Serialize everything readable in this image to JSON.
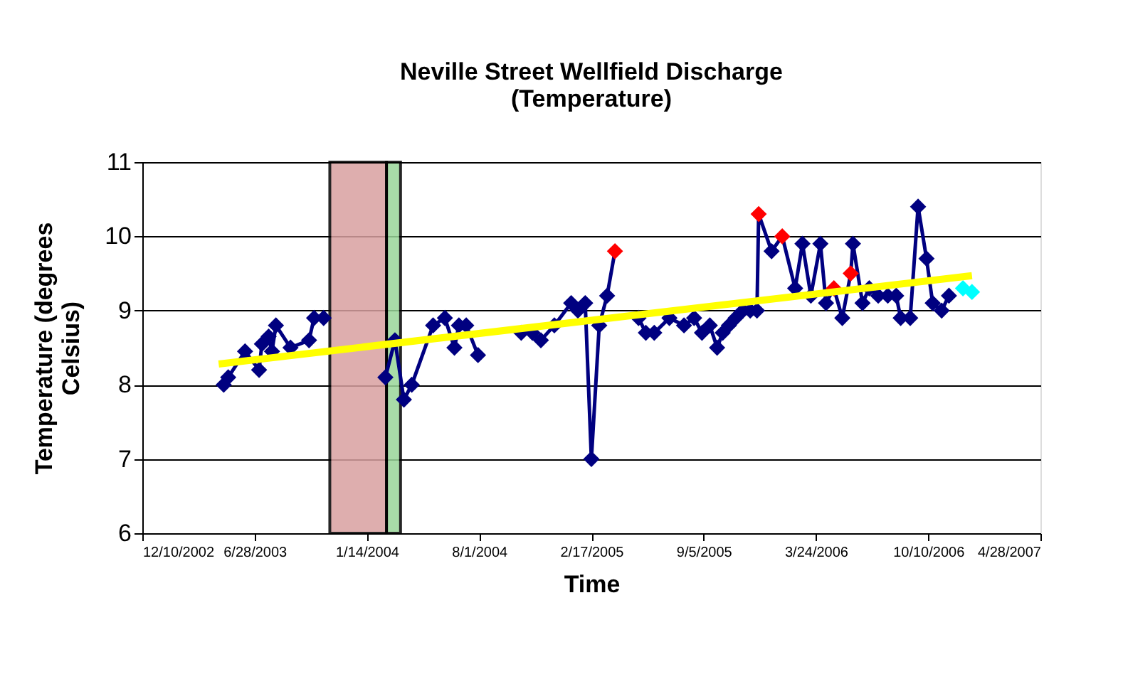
{
  "chart_data": {
    "type": "line",
    "title": "Neville Street Wellfield Discharge (Temperature)",
    "xlabel": "Time",
    "ylabel": "Temperature (degrees Celsius)",
    "xlim": [
      "2002-12-10",
      "2007-04-28"
    ],
    "xticks": [
      {
        "value": "2002-12-10",
        "label": "12/10/2002"
      },
      {
        "value": "2003-06-28",
        "label": "6/28/2003"
      },
      {
        "value": "2004-01-14",
        "label": "1/14/2004"
      },
      {
        "value": "2004-08-01",
        "label": "8/1/2004"
      },
      {
        "value": "2005-02-17",
        "label": "2/17/2005"
      },
      {
        "value": "2005-09-05",
        "label": "9/5/2005"
      },
      {
        "value": "2006-03-24",
        "label": "3/24/2006"
      },
      {
        "value": "2006-10-10",
        "label": "10/10/2006"
      },
      {
        "value": "2007-04-28",
        "label": "4/28/2007"
      }
    ],
    "ylim": [
      6,
      11
    ],
    "yticks": [
      6,
      7,
      8,
      9,
      10,
      11
    ],
    "grid": "y",
    "marker": "diamond",
    "line_style": "solid",
    "bands": [
      {
        "axis": "x",
        "from": "2003-11-09",
        "to": "2004-02-18",
        "color": "#d9a0a0"
      },
      {
        "axis": "x",
        "from": "2004-02-18",
        "to": "2004-03-14",
        "color": "#99d699"
      }
    ],
    "series": [
      {
        "color": "#000080",
        "x": [
          "2003-05-04",
          "2003-05-12",
          "2003-06-11",
          "2003-07-06",
          "2003-07-11",
          "2003-07-23",
          "2003-07-29",
          "2003-08-05",
          "2003-08-31",
          "2003-10-03",
          "2003-10-12",
          "2003-10-29",
          "2003-12-20",
          "2004-02-16",
          "2004-03-04",
          "2004-03-20",
          "2004-04-03",
          "2004-05-11",
          "2004-06-01",
          "2004-06-18",
          "2004-06-26",
          "2004-07-09",
          "2004-07-30",
          "2004-09-15",
          "2004-10-15",
          "2004-11-04",
          "2004-11-19",
          "2004-12-13",
          "2005-01-12",
          "2005-01-24",
          "2005-02-06",
          "2005-02-17",
          "2005-03-03",
          "2005-03-17",
          "2005-03-31",
          "2005-04-20",
          "2005-05-12",
          "2005-05-25",
          "2005-06-09",
          "2005-07-06",
          "2005-08-01",
          "2005-08-19",
          "2005-09-02",
          "2005-09-16",
          "2005-09-29",
          "2005-10-09",
          "2005-10-20",
          "2005-11-01",
          "2005-11-14",
          "2005-11-27",
          "2005-12-09",
          "2005-12-12",
          "2006-01-04",
          "2006-01-23",
          "2006-02-15",
          "2006-02-28",
          "2006-03-15",
          "2006-04-01",
          "2006-04-11",
          "2006-04-25",
          "2006-05-10",
          "2006-05-25",
          "2006-05-29",
          "2006-06-15",
          "2006-06-27",
          "2006-07-13",
          "2006-07-30",
          "2006-08-14",
          "2006-08-22",
          "2006-09-08",
          "2006-09-22",
          "2006-10-07",
          "2006-10-18",
          "2006-11-03",
          "2006-11-16"
        ],
        "values": [
          8.0,
          8.1,
          8.45,
          8.2,
          8.55,
          8.65,
          8.45,
          8.8,
          8.5,
          8.6,
          8.9,
          8.9,
          null,
          8.1,
          8.6,
          7.8,
          8.0,
          8.8,
          8.9,
          8.5,
          8.8,
          8.8,
          8.4,
          null,
          8.7,
          8.7,
          8.6,
          8.8,
          9.1,
          9.0,
          9.1,
          7.0,
          8.8,
          9.2,
          9.8,
          null,
          8.9,
          8.7,
          8.7,
          8.9,
          8.8,
          8.9,
          8.7,
          8.8,
          8.5,
          8.7,
          8.8,
          8.9,
          9.0,
          9.0,
          9.0,
          10.3,
          9.8,
          10.0,
          9.3,
          9.9,
          9.2,
          9.9,
          9.1,
          9.3,
          8.9,
          9.5,
          9.9,
          9.1,
          9.3,
          9.2,
          9.2,
          9.2,
          8.9,
          8.9,
          10.4,
          9.7,
          9.1,
          9.0,
          9.2
        ],
        "colors": [
          "#000080",
          "#000080",
          "#000080",
          "#000080",
          "#000080",
          "#000080",
          "#000080",
          "#000080",
          "#000080",
          "#000080",
          "#000080",
          "#000080",
          null,
          "#000080",
          "#000080",
          "#000080",
          "#000080",
          "#000080",
          "#000080",
          "#000080",
          "#000080",
          "#000080",
          "#000080",
          null,
          "#000080",
          "#000080",
          "#000080",
          "#000080",
          "#000080",
          "#000080",
          "#000080",
          "#000080",
          "#000080",
          "#000080",
          "#ff0000",
          null,
          "#000080",
          "#000080",
          "#000080",
          "#000080",
          "#000080",
          "#000080",
          "#000080",
          "#000080",
          "#000080",
          "#000080",
          "#000080",
          "#000080",
          "#000080",
          "#000080",
          "#000080",
          "#ff0000",
          "#000080",
          "#ff0000",
          "#000080",
          "#000080",
          "#000080",
          "#000080",
          "#000080",
          "#ff0000",
          "#000080",
          "#ff0000",
          "#000080",
          "#000080",
          "#000080",
          "#000080",
          "#000080",
          "#000080",
          "#000080",
          "#000080",
          "#000080",
          "#000080",
          "#000080",
          "#000080",
          "#000080"
        ]
      },
      {
        "type": "scatter",
        "color": "#00ffff",
        "x": [
          "2006-12-11",
          "2006-12-27"
        ],
        "values": [
          9.3,
          9.25
        ]
      },
      {
        "type": "line",
        "color": "#ffff00",
        "marker": "none",
        "x": [
          "2003-04-25",
          "2006-12-27"
        ],
        "values": [
          8.28,
          9.47
        ]
      }
    ]
  }
}
